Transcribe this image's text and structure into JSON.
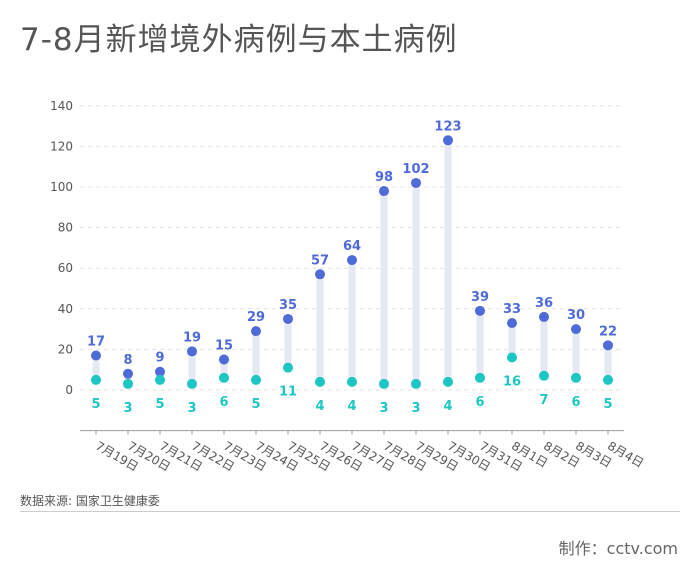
{
  "title": "7-8月新增境外病例与本土病例",
  "source": "数据来源: 国家卫生健康委",
  "credit": "制作：cctv.com",
  "colors": {
    "imported": "#4F6BD9",
    "local": "#1CC7C3",
    "stem": "#E6E8F3",
    "grid": "#E3E3E3",
    "axis": "#999999",
    "text": "#555555"
  },
  "chart_data": {
    "type": "scatter",
    "categories": [
      "7月19日",
      "7月20日",
      "7月21日",
      "7月22日",
      "7月23日",
      "7月24日",
      "7月25日",
      "7月26日",
      "7月27日",
      "7月28日",
      "7月29日",
      "7月30日",
      "7月31日",
      "8月1日",
      "8月2日",
      "8月3日",
      "8月4日"
    ],
    "series": [
      {
        "values": [
          17,
          8,
          9,
          19,
          15,
          29,
          35,
          57,
          64,
          98,
          102,
          123,
          39,
          33,
          36,
          30,
          22
        ]
      },
      {
        "values": [
          5,
          3,
          5,
          3,
          6,
          5,
          11,
          4,
          4,
          3,
          3,
          4,
          6,
          16,
          7,
          6,
          5
        ]
      }
    ],
    "yticks": [
      0,
      20,
      40,
      60,
      80,
      100,
      120,
      140
    ],
    "ylim": [
      -20,
      140
    ],
    "grid": true
  }
}
